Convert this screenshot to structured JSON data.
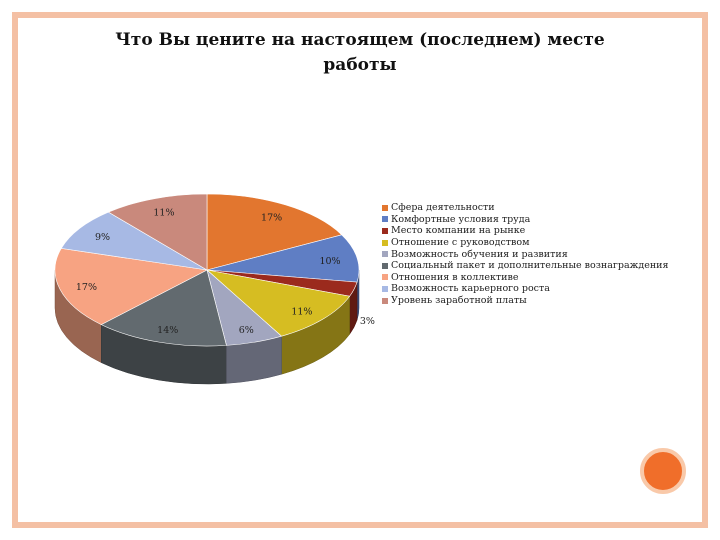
{
  "slide": {
    "title_line1": "Что Вы цените на настоящем (последнем) месте",
    "title_line2": "работы",
    "accent_color": "#f4c0a4"
  },
  "chart_data": {
    "type": "pie",
    "title": "Что Вы цените на настоящем (последнем) месте работы",
    "legend_position": "right",
    "series": [
      {
        "name": "Сфера деятельности",
        "value": 17,
        "label": "17%",
        "color": "#e2762f"
      },
      {
        "name": "Комфортные условия труда",
        "value": 10,
        "label": "10%",
        "color": "#5f7ec4"
      },
      {
        "name": "Место компании на рынке",
        "value": 3,
        "label": "3%",
        "color": "#9b2a1d"
      },
      {
        "name": "Отношение с руководством",
        "value": 11,
        "label": "11%",
        "color": "#d6bd22"
      },
      {
        "name": "Возможность обучения и развития",
        "value": 6,
        "label": "6%",
        "color": "#a2a6bf"
      },
      {
        "name": "Социальный пакет и дополнительные вознаграждения",
        "value": 14,
        "label": "14%",
        "color": "#626a6f"
      },
      {
        "name": "Отношения в коллективе",
        "value": 17,
        "label": "17%",
        "color": "#f7a382"
      },
      {
        "name": "Возможность карьерного роста",
        "value": 9,
        "label": "9%",
        "color": "#a7b9e4"
      },
      {
        "name": "Уровень заработной платы",
        "value": 11,
        "label": "11%",
        "color": "#c9897c"
      }
    ]
  }
}
